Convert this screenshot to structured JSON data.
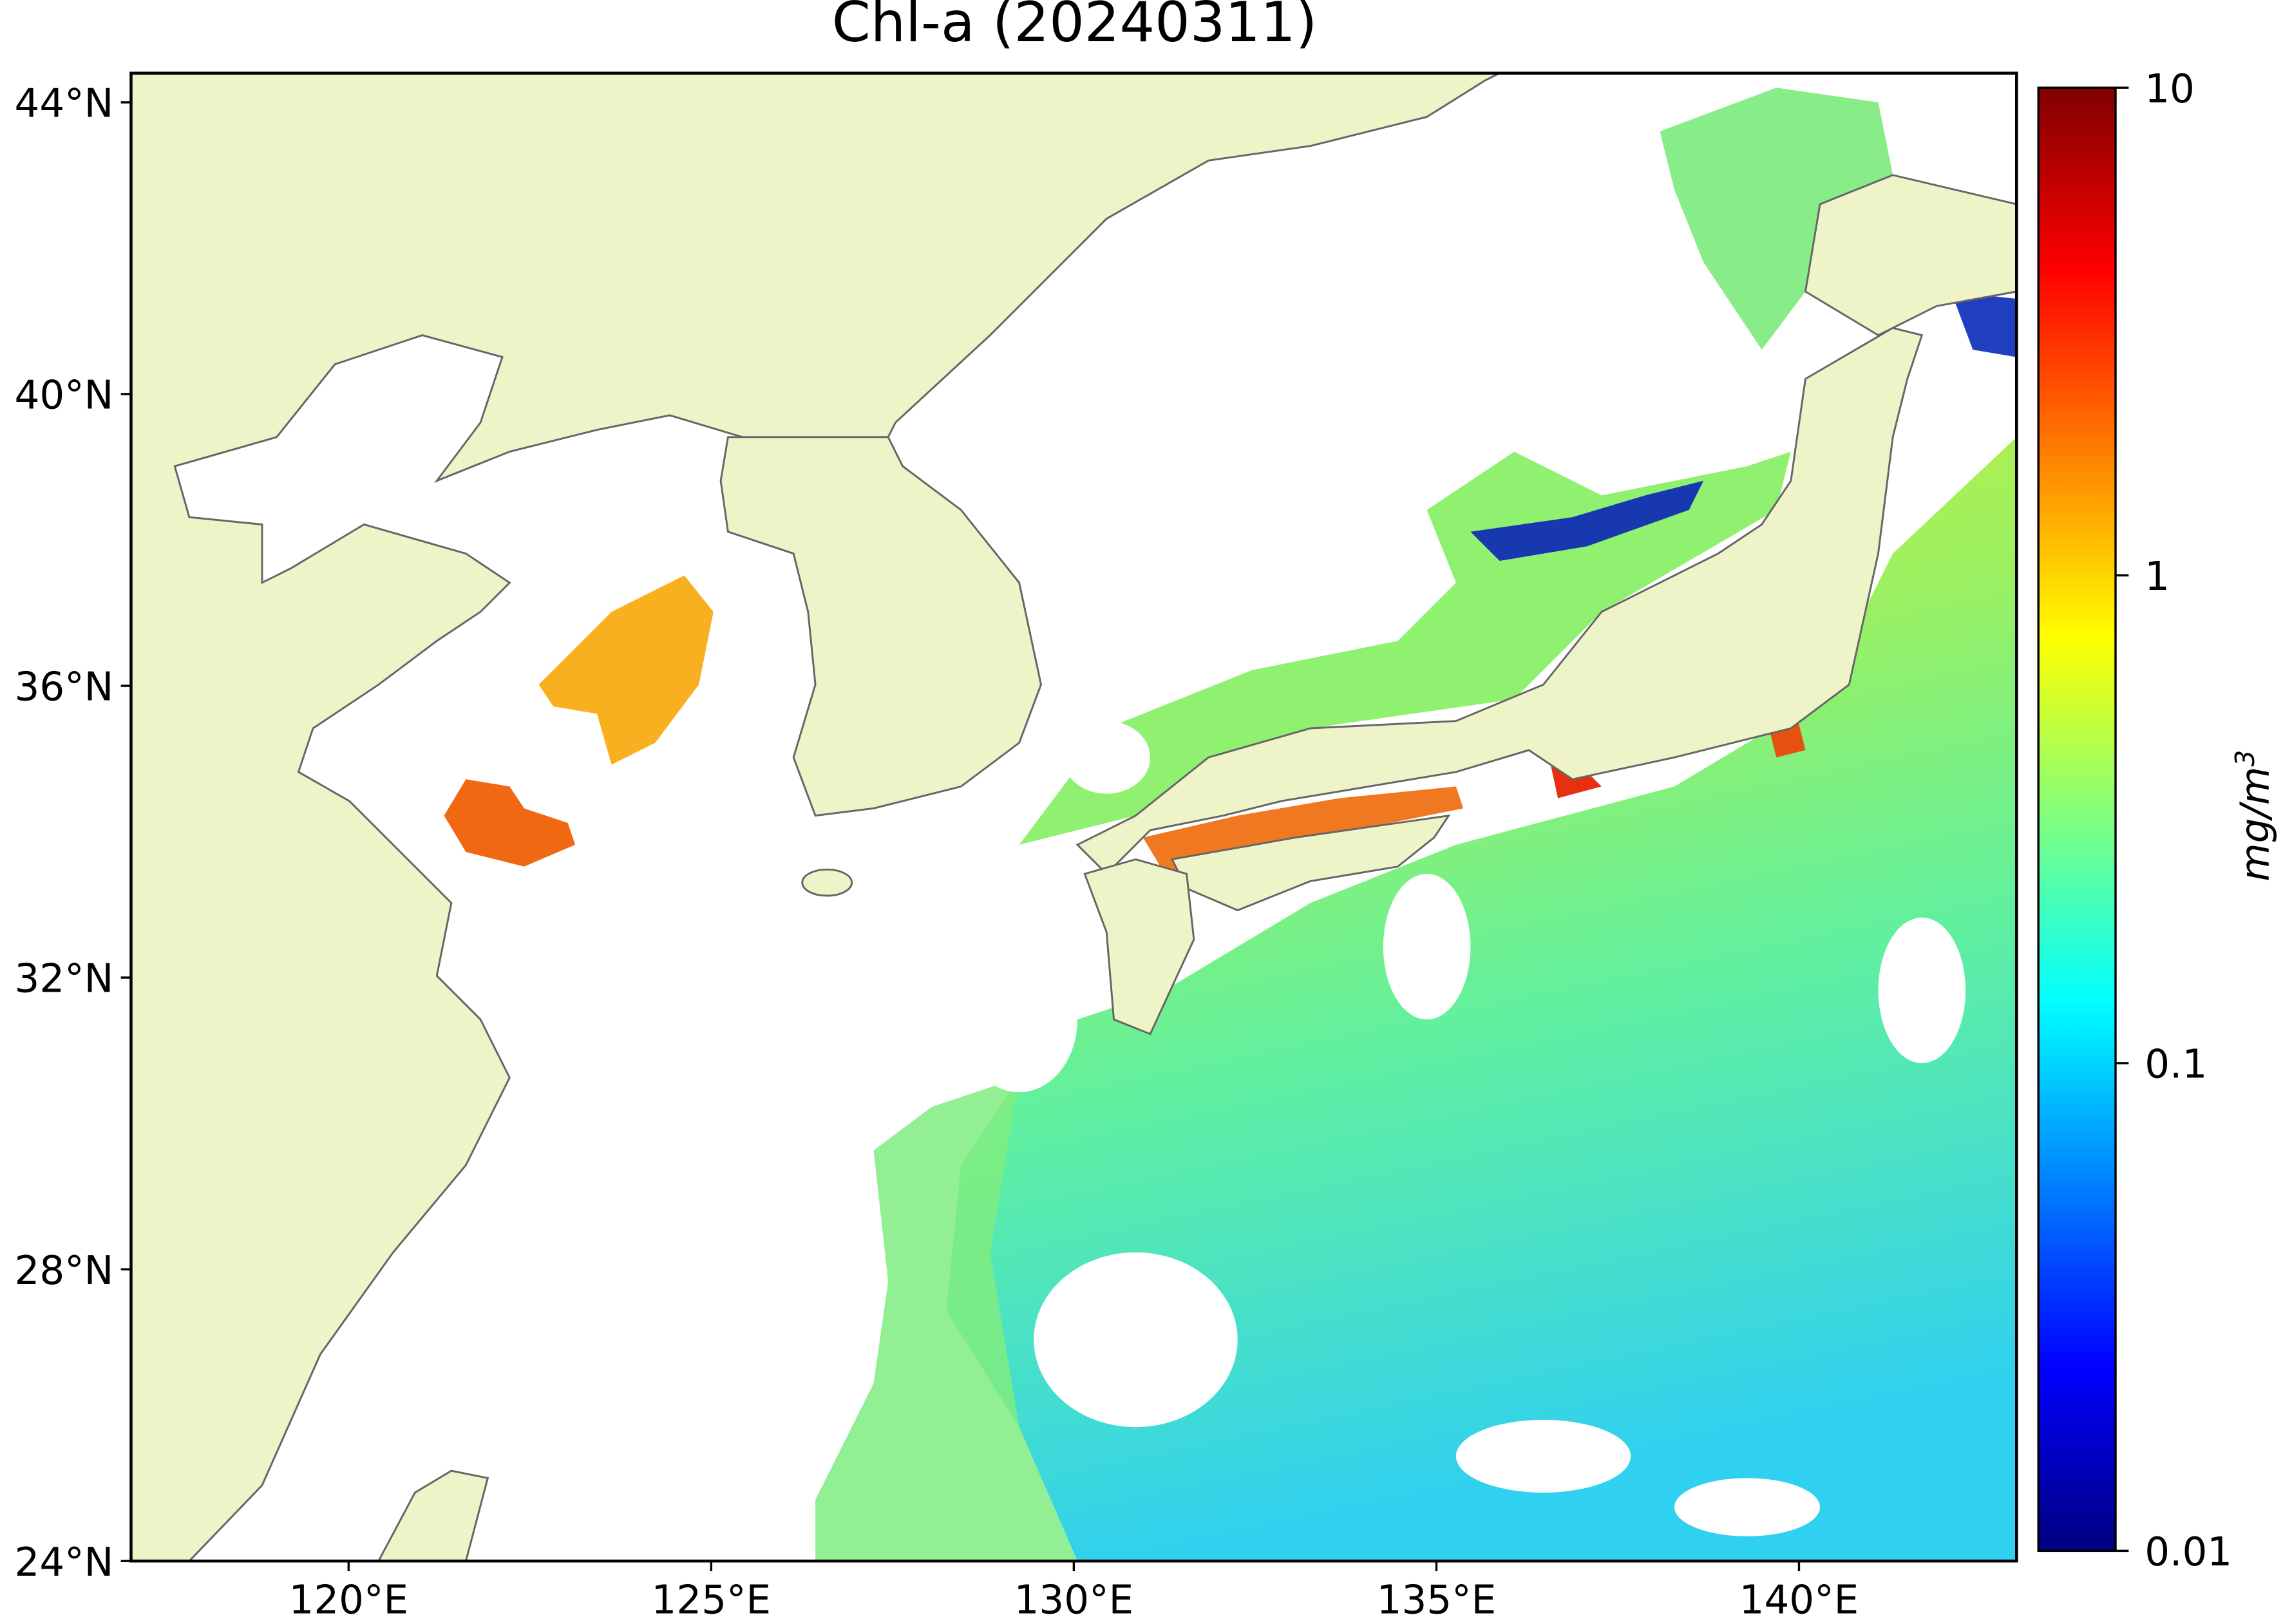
{
  "title": "Chl-a (20240311)",
  "map": {
    "lon_lim": [
      117,
      143
    ],
    "lat_lim": [
      24,
      44.4
    ],
    "lat_ticks": [
      {
        "value": 24,
        "label": "24°N"
      },
      {
        "value": 28,
        "label": "28°N"
      },
      {
        "value": 32,
        "label": "32°N"
      },
      {
        "value": 36,
        "label": "36°N"
      },
      {
        "value": 40,
        "label": "40°N"
      },
      {
        "value": 44,
        "label": "44°N"
      }
    ],
    "lon_ticks": [
      {
        "value": 120,
        "label": "120°E"
      },
      {
        "value": 125,
        "label": "125°E"
      },
      {
        "value": 130,
        "label": "130°E"
      },
      {
        "value": 135,
        "label": "135°E"
      },
      {
        "value": 140,
        "label": "140°E"
      }
    ]
  },
  "colorbar": {
    "label": "mg/m",
    "label_sup": "3",
    "scale": "log",
    "colormap": "jet",
    "lim": [
      0.01,
      10
    ],
    "ticks": [
      {
        "value": 0.01,
        "label": "0.01"
      },
      {
        "value": 0.1,
        "label": "0.1"
      },
      1,
      10
    ]
  }
}
